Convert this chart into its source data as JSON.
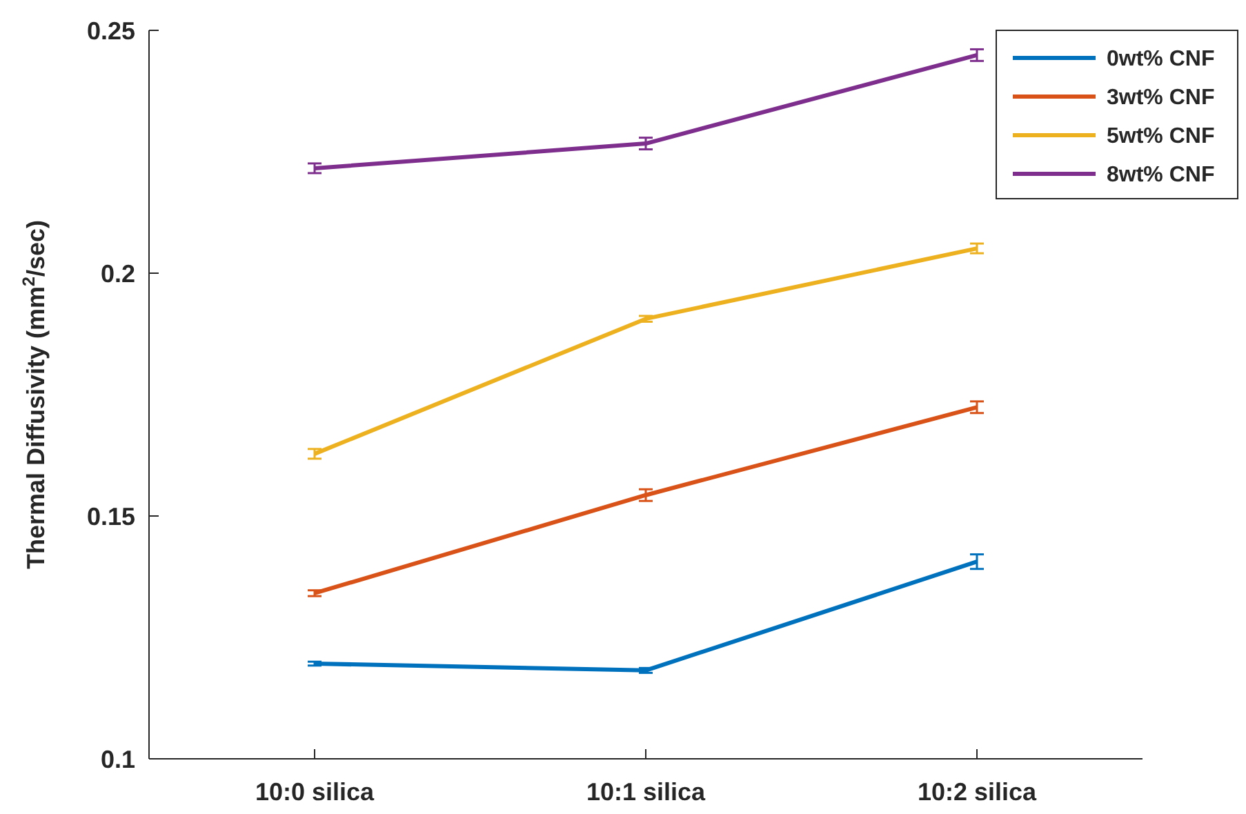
{
  "chart_data": {
    "type": "line",
    "ylabel": "Thermal Diffusivity (mm$^{2}$/sec)",
    "categories": [
      "10:0 silica",
      "10:1 silica",
      "10:2 silica"
    ],
    "series": [
      {
        "name": "0wt% CNF",
        "color": "#0072bd",
        "values": [
          0.1196,
          0.1182,
          0.1406
        ],
        "errors": [
          0.0004,
          0.0005,
          0.0015
        ]
      },
      {
        "name": "3wt% CNF",
        "color": "#d95319",
        "values": [
          0.1341,
          0.1543,
          0.1724
        ],
        "errors": [
          0.0006,
          0.0012,
          0.0012
        ]
      },
      {
        "name": "5wt% CNF",
        "color": "#edb120",
        "values": [
          0.1628,
          0.1906,
          0.2051
        ],
        "errors": [
          0.001,
          0.0006,
          0.001
        ]
      },
      {
        "name": "8wt% CNF",
        "color": "#7e2f8e",
        "values": [
          0.2216,
          0.2267,
          0.2449
        ],
        "errors": [
          0.001,
          0.0012,
          0.0012
        ]
      }
    ],
    "ylim": [
      0.1,
      0.25
    ],
    "yticks": [
      0.1,
      0.15,
      0.2,
      0.25
    ],
    "legend": "top right",
    "grid": false,
    "marker": "none",
    "line_style": "solid"
  }
}
